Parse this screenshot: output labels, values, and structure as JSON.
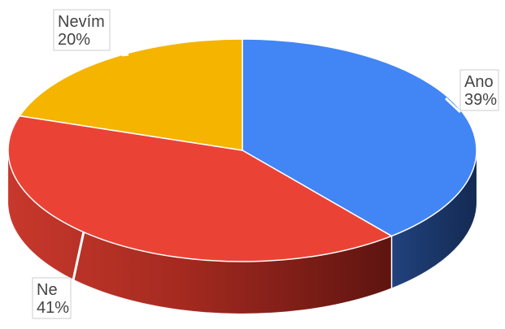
{
  "chart_data": {
    "type": "pie",
    "style": "3d",
    "slices": [
      {
        "label": "Ano",
        "value": 39,
        "display": "39%",
        "color": "#4285f4",
        "side_color": "#1a3566"
      },
      {
        "label": "Ne",
        "value": 41,
        "display": "41%",
        "color": "#ea4335",
        "side_color": "#a52a20"
      },
      {
        "label": "Nevím",
        "value": 20,
        "display": "20%",
        "color": "#f4b400",
        "side_color": "#a87b00"
      }
    ],
    "title": "",
    "legend": "none",
    "data_labels": "outside-with-leader-lines"
  }
}
